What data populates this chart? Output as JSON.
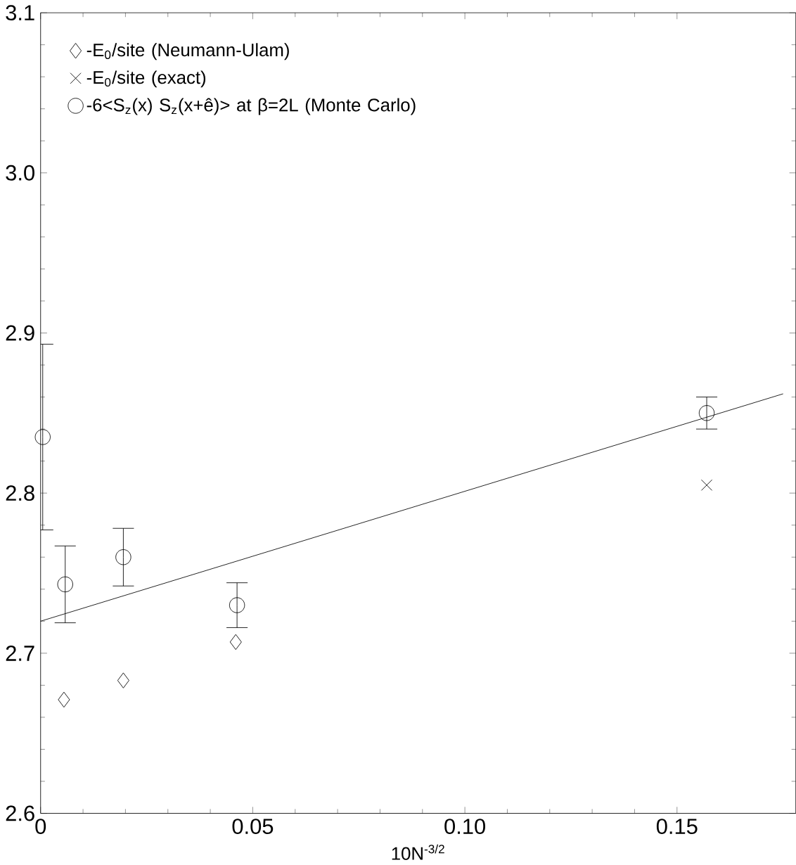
{
  "chart_data": {
    "type": "scatter",
    "xlabel": "10N$^{-3/2}$",
    "xlim": [
      0,
      0.178
    ],
    "ylim": [
      2.6,
      3.1
    ],
    "xticks": [
      0,
      0.05,
      {
        "value": 0.1,
        "label": "0.10"
      },
      0.15
    ],
    "yticks": [
      2.6,
      2.7,
      2.8,
      2.9,
      {
        "value": 3.0,
        "label": "3.0"
      },
      3.1
    ],
    "grid": false,
    "legend": "top left",
    "series": [
      {
        "name": "-E$_{0}$/site (Neumann-Ulam)",
        "color": "#000000",
        "marker": "diamond",
        "x": [
          0.0055,
          0.0195,
          0.046
        ],
        "values": [
          2.671,
          2.683,
          2.707
        ]
      },
      {
        "name": "-E$_{0}$/site (exact)",
        "color": "#000000",
        "marker": "cross",
        "x": [
          0.157
        ],
        "values": [
          2.805
        ]
      },
      {
        "name": "-6<S$_{z}$(x) S$_{z}$(x+ê)> at β=2L (Monte Carlo)",
        "color": "#000000",
        "marker": "circle",
        "x": [
          0.0005,
          0.0058,
          0.0195,
          0.0463,
          0.157
        ],
        "values": [
          2.835,
          2.743,
          2.76,
          2.73,
          2.85
        ],
        "errors": [
          0.058,
          0.024,
          0.018,
          0.014,
          0.01
        ]
      },
      {
        "type": "line",
        "color": "#000000",
        "marker": "none",
        "line_style": "solid",
        "x": [
          0,
          0.175
        ],
        "values": [
          2.72,
          2.862
        ]
      }
    ]
  }
}
